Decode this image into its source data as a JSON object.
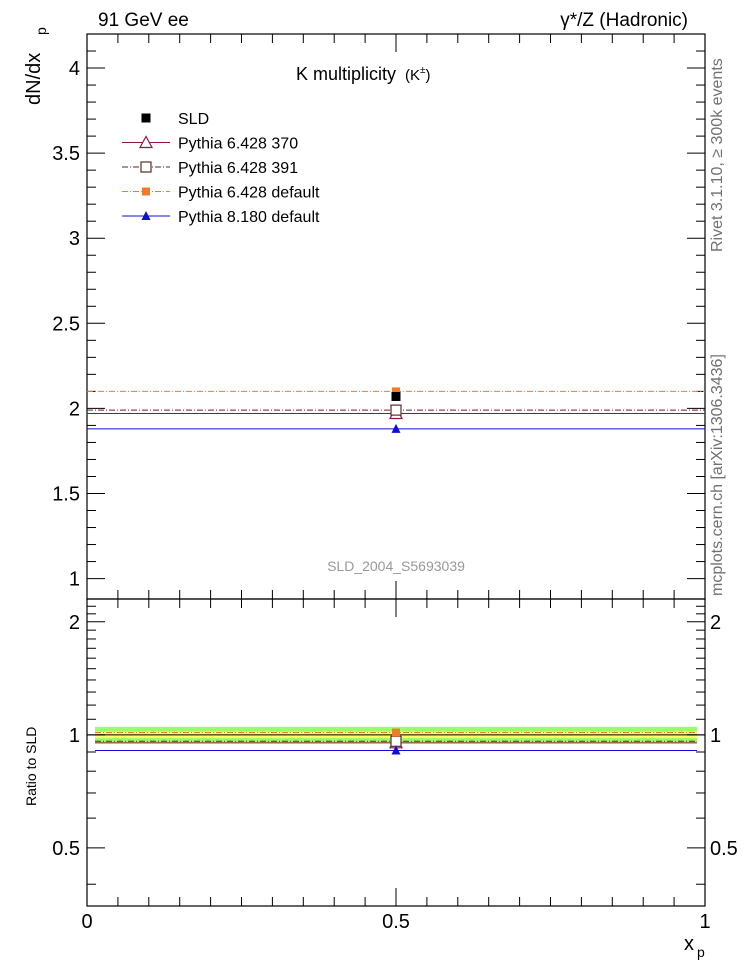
{
  "header": {
    "left": "91 GeV ee",
    "right": "γ*/Z (Hadronic)"
  },
  "side_labels": {
    "rivet": "Rivet 3.1.10, ≥ 300k events",
    "mcplots": "mcplots.cern.ch [arXiv:1306.3436]"
  },
  "watermark": "SLD_2004_S5693039",
  "colors": {
    "sld": "#000000",
    "p370": "#8a1a3c",
    "p391": "#5a2a2a",
    "p6default": "#f07c2a",
    "p8default": "#1010d0",
    "band_inner": "#ffff66",
    "band_outer": "#99ff66"
  },
  "chart_data": [
    {
      "type": "scatter",
      "title": "K multiplicity",
      "title_suffix": "(K",
      "title_sup": "±",
      "title_close": ")",
      "ylabel": "dN/dx",
      "ylabel_sub": "p",
      "xlim": [
        0,
        1
      ],
      "ylim": [
        0.88,
        4.2
      ],
      "grid": false,
      "legend_placement": "top-left",
      "yticks": [
        "1",
        "1.5",
        "2",
        "2.5",
        "3",
        "3.5",
        "4"
      ],
      "series": [
        {
          "name": "SLD",
          "x": [
            0.5
          ],
          "y": [
            2.07
          ],
          "xerr": [
            0.5
          ],
          "style": "data",
          "color": "#000000"
        },
        {
          "name": "Pythia 6.428 370",
          "x": [
            0.5
          ],
          "y": [
            1.97
          ],
          "xerr": [
            0.5
          ],
          "style": "open-triangle",
          "color": "#8a1a3c"
        },
        {
          "name": "Pythia 6.428 391",
          "x": [
            0.5
          ],
          "y": [
            1.99
          ],
          "xerr": [
            0.5
          ],
          "style": "open-square",
          "color": "#5a2a2a"
        },
        {
          "name": "Pythia 6.428 default",
          "x": [
            0.5
          ],
          "y": [
            2.1
          ],
          "xerr": [
            0.5
          ],
          "style": "filled-square",
          "color": "#f07c2a"
        },
        {
          "name": "Pythia 8.180 default",
          "x": [
            0.5
          ],
          "y": [
            1.88
          ],
          "xerr": [
            0.5
          ],
          "style": "filled-triangle",
          "color": "#1010d0"
        }
      ]
    },
    {
      "type": "scatter",
      "ylabel": "Ratio to SLD",
      "xlabel": "x",
      "xlabel_sub": "p",
      "xlim": [
        0,
        1
      ],
      "ylim": [
        0.35,
        2.3
      ],
      "grid": false,
      "xticks": [
        "0",
        "0.5",
        "1"
      ],
      "yticks": [
        "0.5",
        "1",
        "2"
      ],
      "band": {
        "inner": [
          0.98,
          1.02
        ],
        "outer": [
          0.95,
          1.05
        ]
      },
      "series": [
        {
          "name": "Pythia 6.428 370",
          "x": [
            0.5
          ],
          "y": [
            0.952
          ]
        },
        {
          "name": "Pythia 6.428 391",
          "x": [
            0.5
          ],
          "y": [
            0.961
          ]
        },
        {
          "name": "Pythia 6.428 default",
          "x": [
            0.5
          ],
          "y": [
            1.014
          ]
        },
        {
          "name": "Pythia 8.180 default",
          "x": [
            0.5
          ],
          "y": [
            0.908
          ]
        }
      ]
    }
  ]
}
